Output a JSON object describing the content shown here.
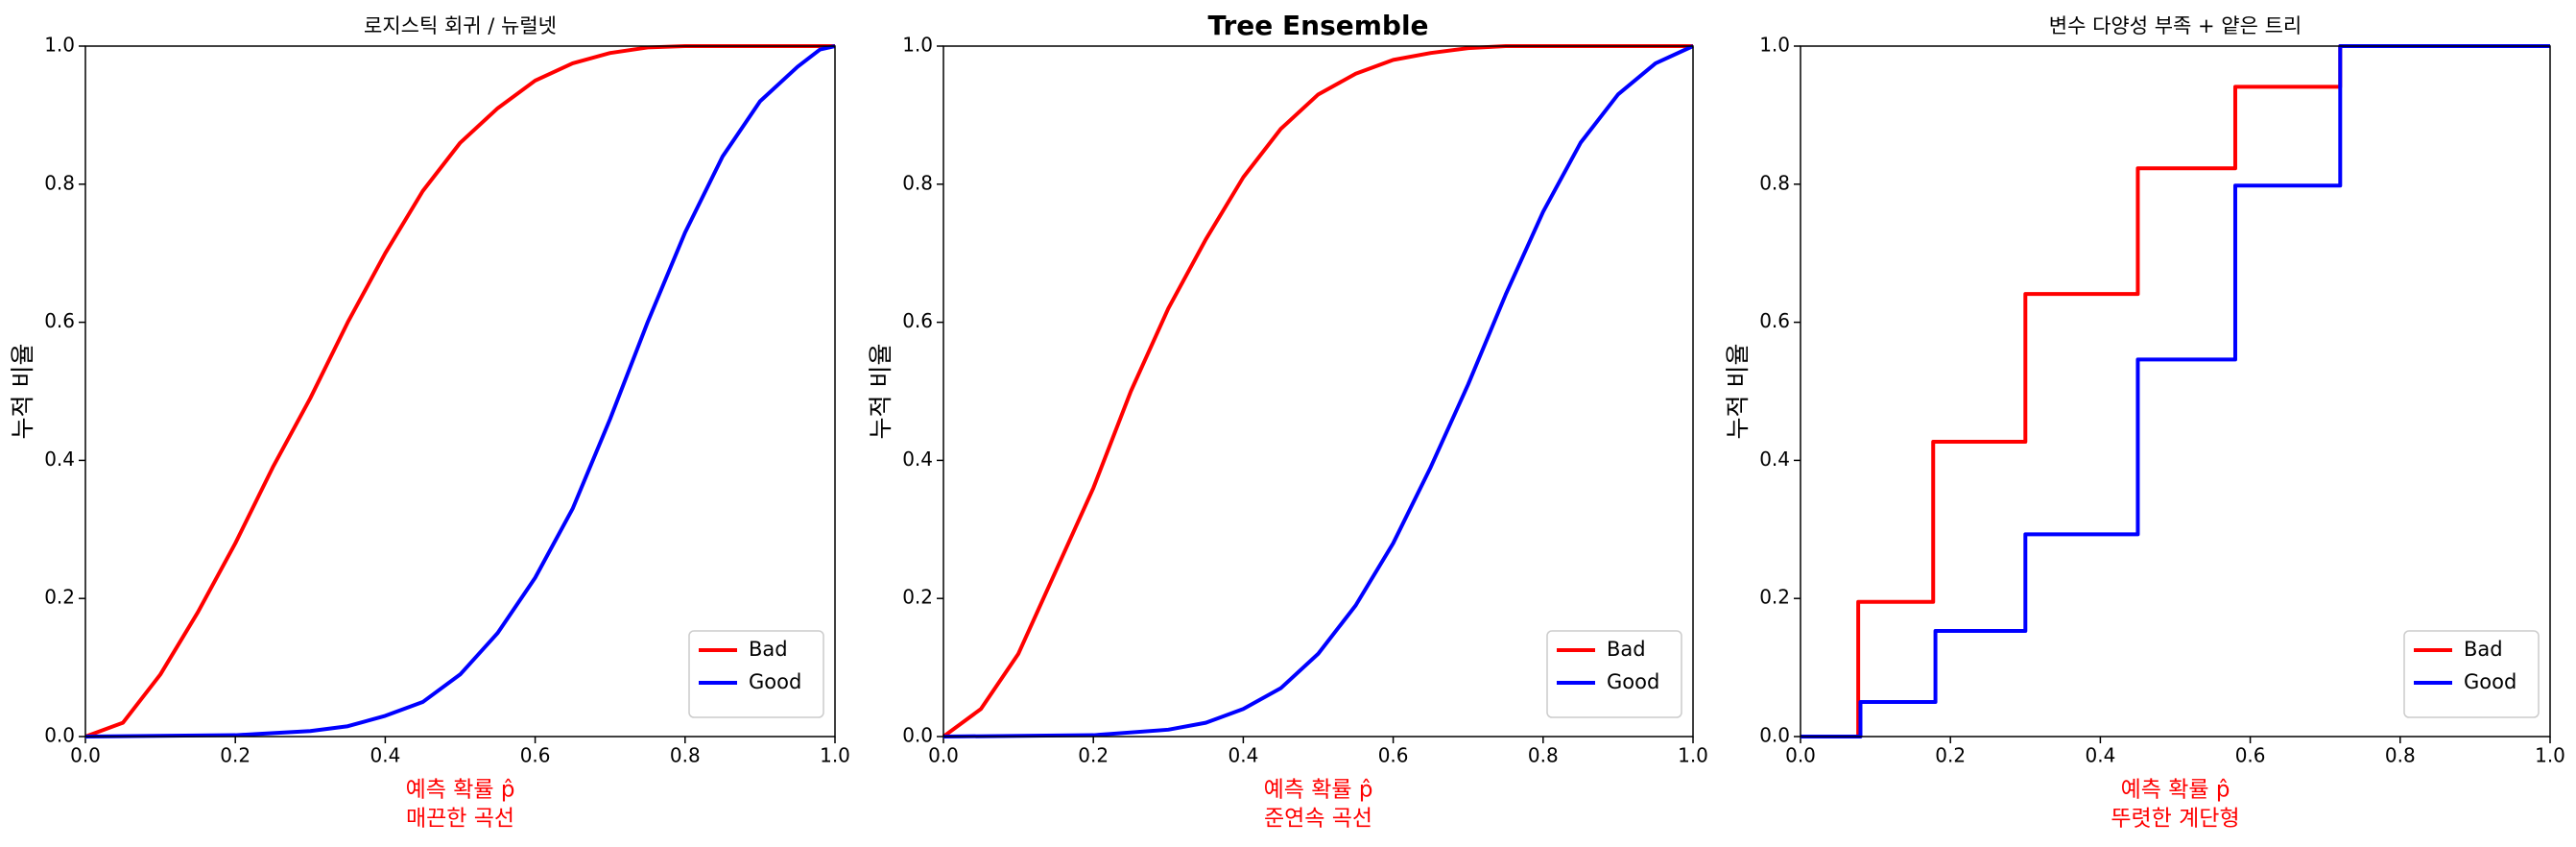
{
  "chart_data": [
    {
      "type": "line",
      "title": "로지스틱 회귀 / 뉴럴넷",
      "title_weight": "normal",
      "xlabel": "예측 확률 p̂",
      "annotation": "매끈한 곡선",
      "ylabel": "누적 비율",
      "xlim": [
        0,
        1
      ],
      "ylim": [
        0,
        1
      ],
      "xticks": [
        {
          "value": 0,
          "label": "0.0"
        },
        0.2,
        0.4,
        0.6,
        0.8,
        {
          "value": 1,
          "label": "1.0"
        }
      ],
      "yticks": [
        {
          "value": 0,
          "label": "0.0"
        },
        0.2,
        0.4,
        0.6,
        0.8,
        {
          "value": 1,
          "label": "1.0"
        }
      ],
      "legend": "lower right",
      "drawstyle": "default",
      "series": [
        {
          "name": "Bad",
          "color": "#ff0000",
          "x": [
            0,
            0.05,
            0.1,
            0.15,
            0.2,
            0.25,
            0.3,
            0.35,
            0.4,
            0.45,
            0.5,
            0.55,
            0.6,
            0.65,
            0.7,
            0.75,
            0.8,
            1
          ],
          "values": [
            0,
            0.02,
            0.09,
            0.18,
            0.28,
            0.39,
            0.49,
            0.6,
            0.7,
            0.79,
            0.86,
            0.91,
            0.95,
            0.975,
            0.99,
            0.998,
            1,
            1
          ]
        },
        {
          "name": "Good",
          "color": "#0000ff",
          "x": [
            0,
            0.2,
            0.3,
            0.35,
            0.4,
            0.45,
            0.5,
            0.55,
            0.6,
            0.65,
            0.7,
            0.75,
            0.8,
            0.85,
            0.9,
            0.95,
            0.98,
            1
          ],
          "values": [
            0,
            0.002,
            0.008,
            0.015,
            0.03,
            0.05,
            0.09,
            0.15,
            0.23,
            0.33,
            0.46,
            0.6,
            0.73,
            0.84,
            0.92,
            0.97,
            0.995,
            1
          ]
        }
      ]
    },
    {
      "type": "line",
      "title": "Tree Ensemble",
      "title_weight": "bold",
      "xlabel": "예측 확률 p̂",
      "annotation": "준연속 곡선",
      "ylabel": "누적 비율",
      "xlim": [
        0,
        1
      ],
      "ylim": [
        0,
        1
      ],
      "xticks": [
        {
          "value": 0,
          "label": "0.0"
        },
        0.2,
        0.4,
        0.6,
        0.8,
        {
          "value": 1,
          "label": "1.0"
        }
      ],
      "yticks": [
        {
          "value": 0,
          "label": "0.0"
        },
        0.2,
        0.4,
        0.6,
        0.8,
        {
          "value": 1,
          "label": "1.0"
        }
      ],
      "legend": "lower right",
      "drawstyle": "default",
      "series": [
        {
          "name": "Bad",
          "color": "#ff0000",
          "x": [
            0,
            0.05,
            0.1,
            0.15,
            0.2,
            0.25,
            0.3,
            0.35,
            0.4,
            0.45,
            0.5,
            0.55,
            0.6,
            0.65,
            0.7,
            0.75,
            1
          ],
          "values": [
            0,
            0.04,
            0.12,
            0.24,
            0.36,
            0.5,
            0.62,
            0.72,
            0.81,
            0.88,
            0.93,
            0.96,
            0.98,
            0.99,
            0.997,
            1,
            1
          ]
        },
        {
          "name": "Good",
          "color": "#0000ff",
          "x": [
            0,
            0.2,
            0.3,
            0.35,
            0.4,
            0.45,
            0.5,
            0.55,
            0.6,
            0.65,
            0.7,
            0.75,
            0.8,
            0.85,
            0.9,
            0.95,
            1
          ],
          "values": [
            0,
            0.002,
            0.01,
            0.02,
            0.04,
            0.07,
            0.12,
            0.19,
            0.28,
            0.39,
            0.51,
            0.64,
            0.76,
            0.86,
            0.93,
            0.975,
            1
          ]
        }
      ]
    },
    {
      "type": "line",
      "title": "변수 다양성 부족 + 얕은 트리",
      "title_weight": "normal",
      "xlabel": "예측 확률 p̂",
      "annotation": "뚜렷한 계단형",
      "ylabel": "누적 비율",
      "xlim": [
        0,
        1
      ],
      "ylim": [
        0,
        1
      ],
      "xticks": [
        {
          "value": 0,
          "label": "0.0"
        },
        0.2,
        0.4,
        0.6,
        0.8,
        {
          "value": 1,
          "label": "1.0"
        }
      ],
      "yticks": [
        {
          "value": 0,
          "label": "0.0"
        },
        0.2,
        0.4,
        0.6,
        0.8,
        {
          "value": 1,
          "label": "1.0"
        }
      ],
      "legend": "lower right",
      "drawstyle": "steps-post",
      "series": [
        {
          "name": "Bad",
          "color": "#ff0000",
          "x": [
            0,
            0.077,
            0.177,
            0.3,
            0.45,
            0.58,
            0.72,
            1
          ],
          "values": [
            0,
            0.195,
            0.427,
            0.641,
            0.823,
            0.941,
            1,
            1
          ]
        },
        {
          "name": "Good",
          "color": "#0000ff",
          "x": [
            0,
            0.08,
            0.18,
            0.3,
            0.45,
            0.58,
            0.72,
            1
          ],
          "values": [
            0,
            0.05,
            0.153,
            0.293,
            0.546,
            0.798,
            1,
            1
          ]
        }
      ]
    }
  ]
}
